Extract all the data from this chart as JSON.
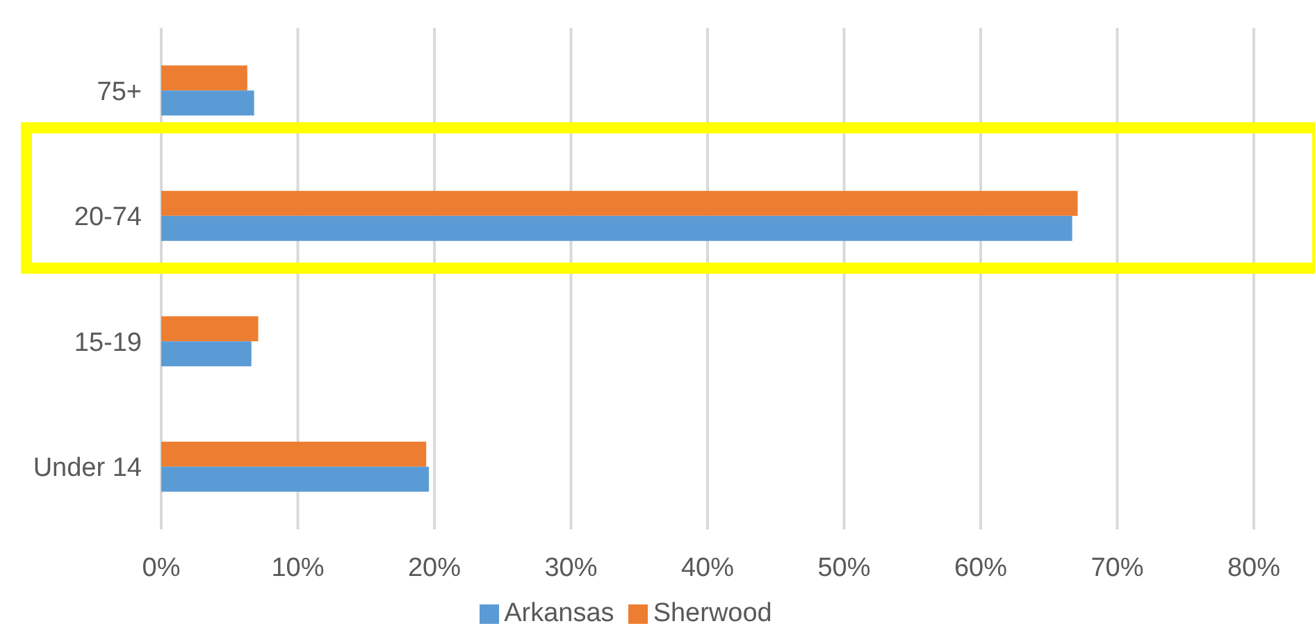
{
  "chart_data": {
    "type": "bar",
    "orientation": "horizontal",
    "categories": [
      "75+",
      "20-74",
      "15-19",
      "Under 14"
    ],
    "series": [
      {
        "name": "Sherwood",
        "color": "#ed7d31",
        "values": [
          6.3,
          67.1,
          7.1,
          19.4
        ]
      },
      {
        "name": "Arkansas",
        "color": "#5b9bd5",
        "values": [
          6.8,
          66.7,
          6.6,
          19.6
        ]
      }
    ],
    "xlim": [
      0,
      80
    ],
    "xticks": [
      {
        "value": 0,
        "label": "0%"
      },
      {
        "value": 10,
        "label": "10%"
      },
      {
        "value": 20,
        "label": "20%"
      },
      {
        "value": 30,
        "label": "30%"
      },
      {
        "value": 40,
        "label": "40%"
      },
      {
        "value": 50,
        "label": "50%"
      },
      {
        "value": 60,
        "label": "60%"
      },
      {
        "value": 70,
        "label": "70%"
      },
      {
        "value": 80,
        "label": "80%"
      }
    ],
    "grid": "x",
    "legend": "bottom"
  }
}
